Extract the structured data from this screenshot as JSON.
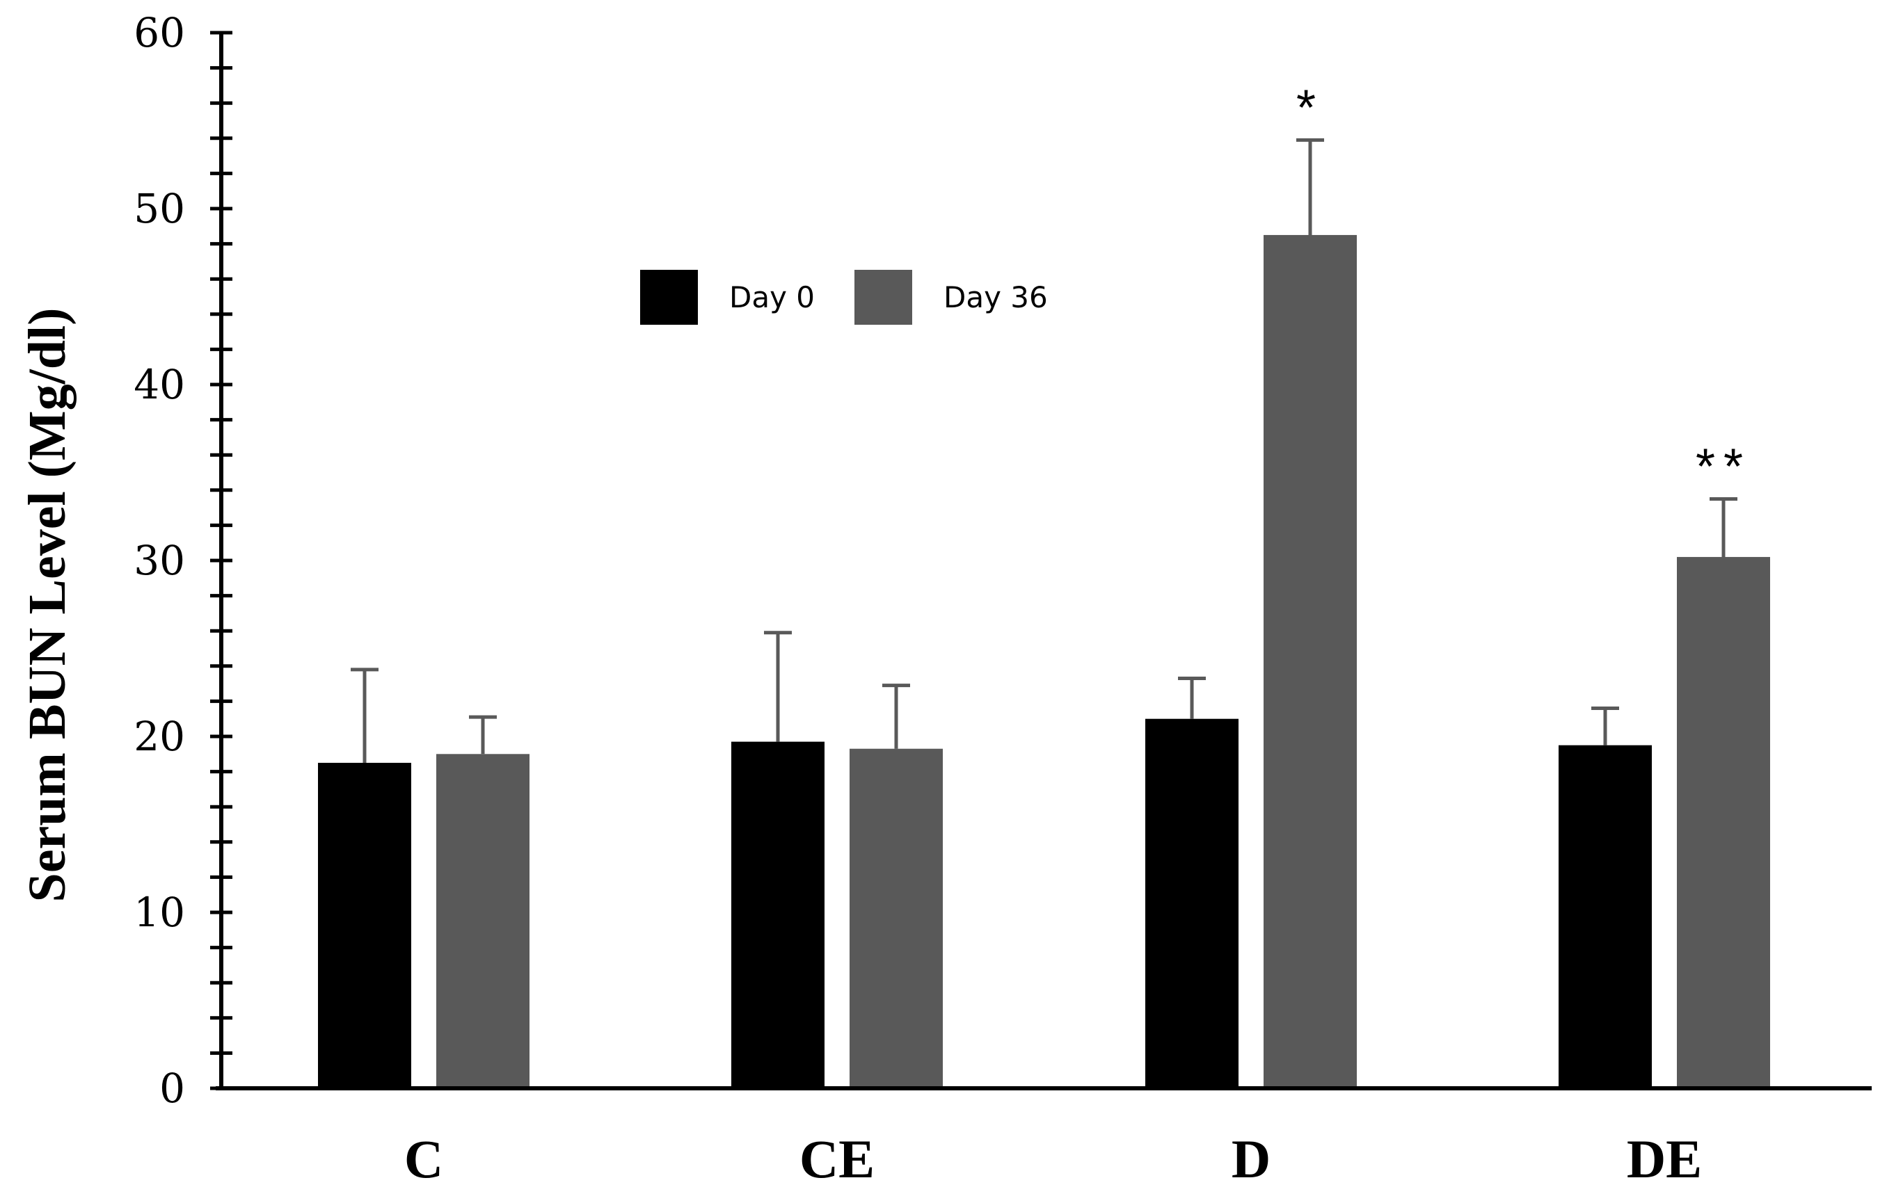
{
  "chart_data": {
    "type": "bar",
    "title": "",
    "xlabel": "",
    "ylabel": "Serum BUN Level (Mg/dl)",
    "ylim": [
      0,
      60
    ],
    "yticks": [
      0,
      10,
      20,
      30,
      40,
      50,
      60
    ],
    "categories": [
      "C",
      "CE",
      "D",
      "DE"
    ],
    "series": [
      {
        "name": "Day 0",
        "color": "#000000",
        "values": [
          18.5,
          19.7,
          21.0,
          19.5
        ],
        "errors": [
          5.3,
          6.2,
          2.3,
          2.1
        ]
      },
      {
        "name": "Day 36",
        "color": "#595959",
        "values": [
          19.0,
          19.3,
          48.5,
          30.2
        ],
        "errors": [
          2.1,
          3.6,
          5.4,
          3.3
        ]
      }
    ],
    "annotations": [
      {
        "category": "D",
        "series": "Day 36",
        "text": "*"
      },
      {
        "category": "DE",
        "series": "Day 36",
        "text": "**"
      }
    ],
    "legend_position": "top-center",
    "grid": false
  }
}
